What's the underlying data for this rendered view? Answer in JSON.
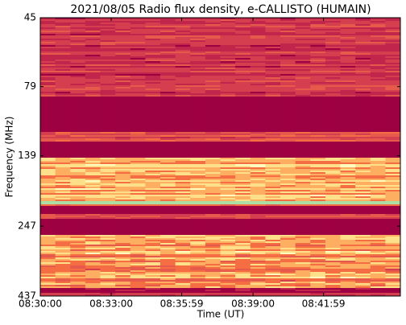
{
  "chart_data": {
    "type": "spectrogram",
    "title": "2021/08/05  Radio flux density, e-CALLISTO (HUMAIN)",
    "xlabel": "Time (UT)",
    "ylabel": "Frequency (MHz)",
    "xlim": [
      "08:30:00",
      "08:45:14"
    ],
    "xticks": [
      "08:30:00",
      "08:33:00",
      "08:35:59",
      "08:39:00",
      "08:41:59"
    ],
    "ylim": [
      45,
      437
    ],
    "yticks": [
      45,
      79,
      139,
      247,
      437
    ],
    "yscale": "log",
    "yinverted": true
  }
}
